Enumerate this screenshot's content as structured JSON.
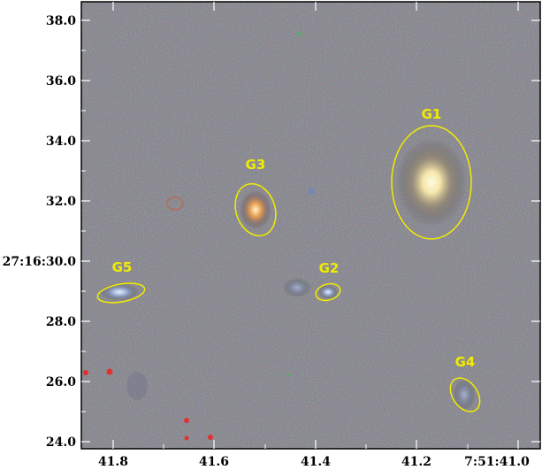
{
  "image": {
    "background_color": "#4a4a4c",
    "ellipse_color": "#f2ec00",
    "label_color": "#f2ec00"
  },
  "axes": {
    "y_tick_labels": [
      "38.0",
      "36.0",
      "34.0",
      "32.0",
      "27:16:30.0",
      "28.0",
      "26.0",
      "24.0"
    ],
    "x_tick_labels": [
      "41.8",
      "41.6",
      "41.4",
      "41.2",
      "7:51:41.0"
    ]
  },
  "galaxies": [
    {
      "label": "G1"
    },
    {
      "label": "G2"
    },
    {
      "label": "G3"
    },
    {
      "label": "G4"
    },
    {
      "label": "G5"
    }
  ]
}
